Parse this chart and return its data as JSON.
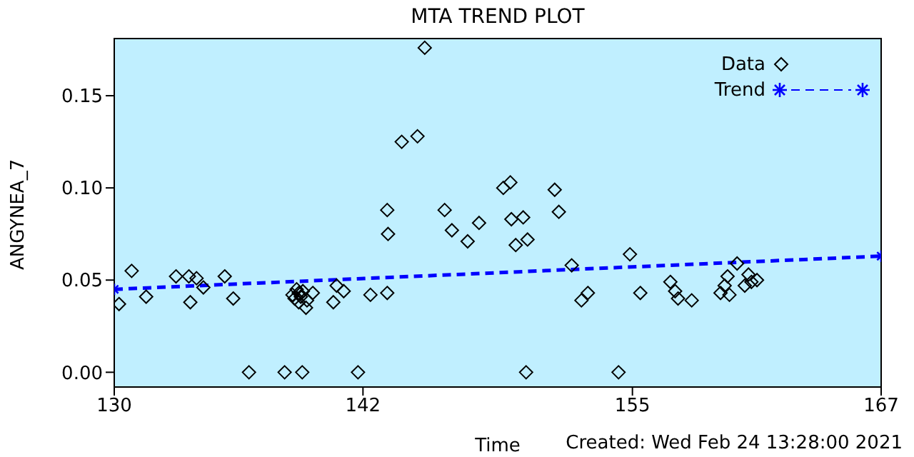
{
  "chart_data": {
    "type": "scatter",
    "title": "MTA TREND PLOT",
    "xlabel": "Time",
    "ylabel": "ANGYNEA_7",
    "annotations": [
      "Created: Wed Feb 24 13:28:00 2021"
    ],
    "xlim": [
      130,
      167
    ],
    "xticks": [
      130,
      142,
      155,
      167
    ],
    "ylim": [
      -0.008,
      0.181
    ],
    "yticks": [
      {
        "value": 0,
        "label": "0.00"
      },
      {
        "value": 0.05,
        "label": "0.05"
      },
      {
        "value": 0.1,
        "label": "0.10"
      },
      {
        "value": 0.15,
        "label": "0.15"
      }
    ],
    "legend": "top right",
    "marker": "diamond",
    "series": [
      {
        "name": "Data",
        "color": "#000000",
        "x": [
          130.23,
          130.84,
          131.54,
          132.98,
          133.6,
          133.67,
          133.97,
          134.3,
          135.33,
          135.74,
          136.5,
          138.22,
          138.6,
          138.7,
          138.8,
          138.9,
          138.9,
          139.0,
          139.07,
          139.1,
          139.25,
          139.3,
          139.58,
          140.57,
          140.73,
          141.07,
          141.76,
          142.36,
          143.17,
          143.17,
          143.21,
          143.87,
          144.63,
          144.98,
          145.94,
          146.29,
          147.05,
          147.6,
          148.77,
          149.11,
          149.16,
          149.37,
          149.73,
          149.87,
          149.94,
          151.25,
          151.45,
          152.07,
          152.54,
          152.85,
          154.33,
          154.88,
          155.38,
          156.83,
          157.06,
          157.2,
          157.86,
          159.25,
          159.45,
          159.59,
          159.68,
          160.05,
          160.42,
          160.6,
          160.74,
          161.01
        ],
        "values": [
          0.037,
          0.055,
          0.041,
          0.052,
          0.052,
          0.038,
          0.051,
          0.046,
          0.052,
          0.04,
          0,
          0,
          0.042,
          0.04,
          0.045,
          0.038,
          0.043,
          0.041,
          0,
          0.044,
          0.035,
          0.039,
          0.043,
          0.038,
          0.047,
          0.044,
          0,
          0.042,
          0.088,
          0.043,
          0.075,
          0.125,
          0.128,
          0.176,
          0.088,
          0.077,
          0.071,
          0.081,
          0.1,
          0.103,
          0.083,
          0.069,
          0.084,
          0,
          0.072,
          0.099,
          0.087,
          0.058,
          0.039,
          0.043,
          0,
          0.064,
          0.043,
          0.049,
          0.044,
          0.04,
          0.039,
          0.043,
          0.047,
          0.052,
          0.042,
          0.059,
          0.047,
          0.053,
          0.049,
          0.05
        ]
      },
      {
        "name": "Trend",
        "type": "line",
        "color": "#0000ff",
        "line_style": "dashed",
        "marker": "cross",
        "x": [
          130,
          167
        ],
        "values": [
          0.045,
          0.063
        ]
      }
    ]
  }
}
